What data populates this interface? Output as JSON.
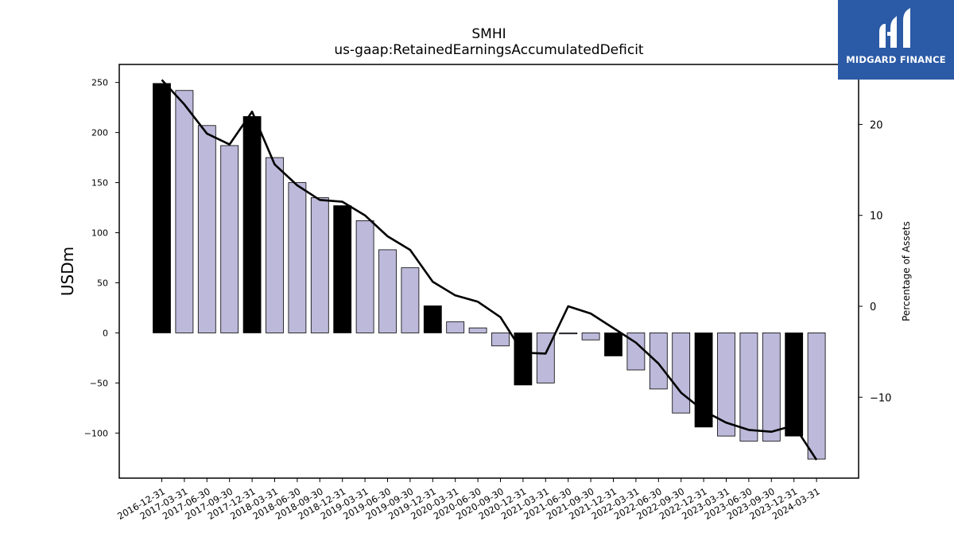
{
  "chart_data": {
    "type": "bar",
    "title": "SMHI",
    "subtitle": "us-gaap:RetainedEarningsAccumulatedDeficit",
    "ylabel": "USDm",
    "y2label": "Percentage of Assets",
    "ylim": [
      -145,
      268
    ],
    "y2lim": [
      -18.9,
      26.6
    ],
    "yticks": [
      -100,
      -50,
      0,
      50,
      100,
      150,
      200,
      250
    ],
    "y2ticks": [
      -10,
      0,
      10,
      20
    ],
    "categories": [
      "2016-12-31",
      "2017-03-31",
      "2017-06-30",
      "2017-09-30",
      "2017-12-31",
      "2018-03-31",
      "2018-06-30",
      "2018-09-30",
      "2018-12-31",
      "2019-03-31",
      "2019-06-30",
      "2019-09-30",
      "2019-12-31",
      "2020-03-31",
      "2020-06-30",
      "2020-09-30",
      "2020-12-31",
      "2021-03-31",
      "2021-06-30",
      "2021-09-30",
      "2021-12-31",
      "2022-03-31",
      "2022-06-30",
      "2022-09-30",
      "2022-12-31",
      "2023-03-31",
      "2023-06-30",
      "2023-09-30",
      "2023-12-31",
      "2024-03-31"
    ],
    "series": [
      {
        "values": [
          249,
          242,
          207,
          187,
          216,
          175,
          150,
          135,
          127,
          112,
          83,
          65,
          27,
          11,
          5,
          -13,
          -52,
          -50,
          -1,
          -7,
          -23,
          -37,
          -56,
          -80,
          -94,
          -103,
          -108,
          -108,
          -103,
          -126
        ],
        "year_end_color": "#000000",
        "quarter_color": "#bdb9da",
        "year_end": [
          true,
          false,
          false,
          false,
          true,
          false,
          false,
          false,
          true,
          false,
          false,
          false,
          true,
          false,
          false,
          false,
          true,
          false,
          false,
          false,
          true,
          false,
          false,
          false,
          true,
          false,
          false,
          false,
          true,
          false
        ]
      },
      {
        "axis": "right",
        "type": "line",
        "color": "#000000",
        "values": [
          24.9,
          22.2,
          19.0,
          17.8,
          21.4,
          15.6,
          13.3,
          11.7,
          11.5,
          10.0,
          7.7,
          6.2,
          2.7,
          1.2,
          0.5,
          -1.2,
          -5.1,
          -5.2,
          0.0,
          -0.8,
          -2.4,
          -4.0,
          -6.3,
          -9.5,
          -11.5,
          -12.8,
          -13.6,
          -13.8,
          -13.1,
          -16.9
        ]
      }
    ]
  },
  "logo": {
    "text": "MIDGARD FINANCE",
    "background": "#2b5aa6"
  }
}
